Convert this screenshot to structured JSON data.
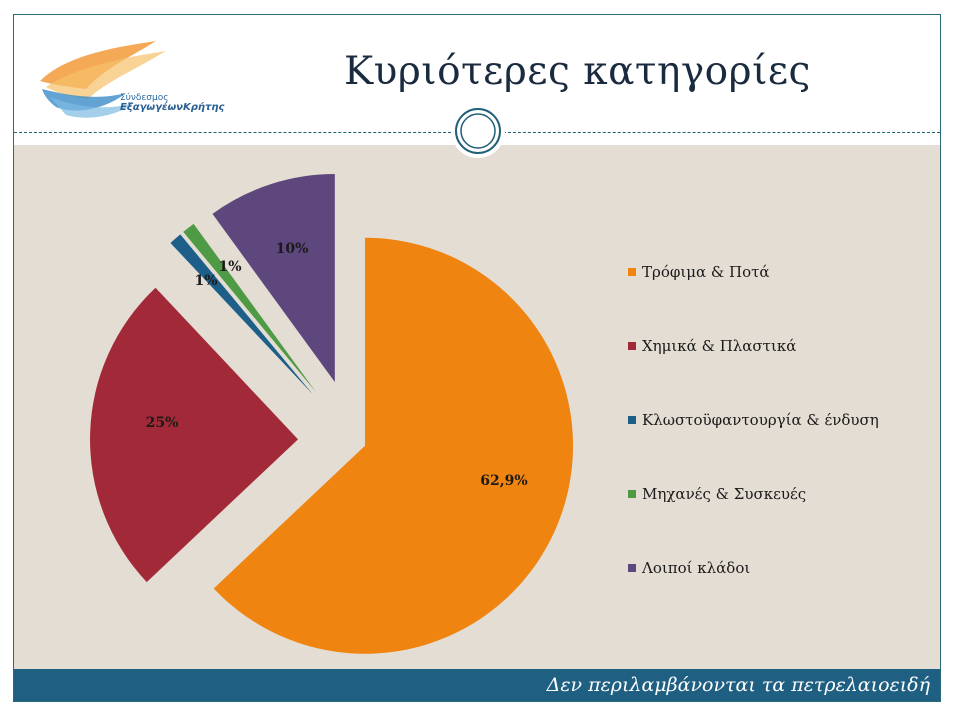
{
  "slide": {
    "title": "Κυριότερες κατηγορίες",
    "footer": "Δεν περιλαμβάνονται τα πετρελαιοειδή",
    "logo": {
      "line1": "Σύνδεσμος",
      "line2": "ΕξαγωγέωνΚρήτης"
    }
  },
  "colors": {
    "background": "#e3ddd3",
    "footer": "#1f5f82",
    "border": "#2a6a7a"
  },
  "chart_data": {
    "type": "pie",
    "title": "",
    "legend_position": "right",
    "slices": [
      {
        "name": "Τρόφιμα & Ποτά",
        "value": 62.9,
        "label": "62,9%",
        "color": "#ef8410"
      },
      {
        "name": "Χημικά & Πλαστικά",
        "value": 25,
        "label": "25%",
        "color": "#a22a38"
      },
      {
        "name": "Κλωστοϋφαντουργία & ένδυση",
        "value": 1,
        "label": "1%",
        "color": "#1e5f8a"
      },
      {
        "name": "Μηχανές & Συσκευές",
        "value": 1,
        "label": "1%",
        "color": "#4f9a45"
      },
      {
        "name": "Λοιποί κλάδοι",
        "value": 10,
        "label": "10%",
        "color": "#5e477d"
      }
    ]
  }
}
